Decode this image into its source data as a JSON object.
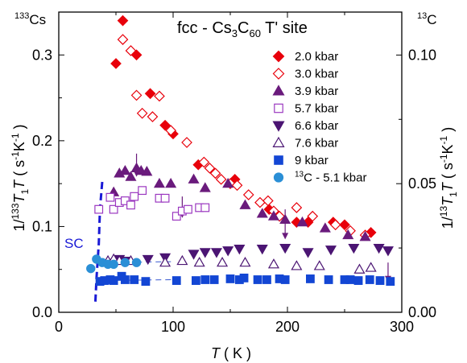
{
  "chart_data": {
    "type": "scatter",
    "title": "fcc - Cs3C60 T' site",
    "xlabel": "T ( K )",
    "ylabel_left": "1/133T1T ( s-1K-1 )",
    "ylabel_right": "1/13T1T ( s-1K-1 )",
    "corner_left": "133Cs",
    "corner_right": "13C",
    "xlim": [
      0,
      300
    ],
    "ylim_left": [
      0,
      0.35
    ],
    "ylim_right": [
      0,
      0.1167
    ],
    "x_ticks": [
      0,
      100,
      200,
      300
    ],
    "y_ticks_left": [
      0.0,
      0.1,
      0.2,
      0.3
    ],
    "y_ticks_left_labels": [
      "0.0",
      "0.1",
      "0.2",
      "0.3"
    ],
    "y_ticks_right": [
      0.0,
      0.05,
      0.1
    ],
    "y_ticks_right_labels": [
      "0.00",
      "0.05",
      "0.10"
    ],
    "annotation_sc": "SC",
    "legend_position": "top-right",
    "series": [
      {
        "name": "2.0 kbar",
        "marker": "diamond",
        "filled": true,
        "color": "#e8000b",
        "points": [
          [
            50,
            0.29
          ],
          [
            56,
            0.34
          ],
          [
            68,
            0.3
          ],
          [
            80,
            0.255
          ],
          [
            93,
            0.218
          ],
          [
            100,
            0.208
          ],
          [
            122,
            0.172
          ],
          [
            154,
            0.155
          ],
          [
            184,
            0.12
          ],
          [
            208,
            0.105
          ],
          [
            218,
            0.105
          ],
          [
            240,
            0.105
          ],
          [
            250,
            0.102
          ],
          [
            273,
            0.093
          ]
        ]
      },
      {
        "name": "3.0 kbar",
        "marker": "diamond",
        "filled": false,
        "color": "#e8000b",
        "points": [
          [
            56,
            0.318
          ],
          [
            63,
            0.305
          ],
          [
            68,
            0.253
          ],
          [
            73,
            0.232
          ],
          [
            82,
            0.228
          ],
          [
            88,
            0.252
          ],
          [
            98,
            0.212
          ],
          [
            112,
            0.198
          ],
          [
            127,
            0.175
          ],
          [
            132,
            0.168
          ],
          [
            137,
            0.162
          ],
          [
            142,
            0.155
          ],
          [
            150,
            0.15
          ],
          [
            156,
            0.148
          ],
          [
            166,
            0.137
          ],
          [
            176,
            0.128
          ],
          [
            183,
            0.13
          ],
          [
            188,
            0.118
          ],
          [
            193,
            0.112
          ],
          [
            208,
            0.122
          ],
          [
            222,
            0.112
          ],
          [
            242,
            0.102
          ],
          [
            255,
            0.095
          ],
          [
            268,
            0.09
          ]
        ]
      },
      {
        "name": "3.9 kbar",
        "marker": "triangle",
        "filled": true,
        "color": "#6a1b7c",
        "points": [
          [
            48,
            0.14
          ],
          [
            53,
            0.162
          ],
          [
            58,
            0.165
          ],
          [
            63,
            0.158
          ],
          [
            68,
            0.168
          ],
          [
            72,
            0.165
          ],
          [
            77,
            0.164
          ],
          [
            88,
            0.15
          ],
          [
            98,
            0.15
          ],
          [
            118,
            0.155
          ],
          [
            128,
            0.145
          ],
          [
            148,
            0.15
          ],
          [
            163,
            0.125
          ],
          [
            178,
            0.115
          ],
          [
            188,
            0.112
          ],
          [
            198,
            0.108
          ],
          [
            213,
            0.105
          ],
          [
            233,
            0.098
          ],
          [
            253,
            0.09
          ],
          [
            268,
            0.088
          ]
        ]
      },
      {
        "name": "5.7 kbar",
        "marker": "square",
        "filled": false,
        "color": "#9b38c0",
        "points": [
          [
            35,
            0.12
          ],
          [
            45,
            0.134
          ],
          [
            48,
            0.12
          ],
          [
            53,
            0.128
          ],
          [
            58,
            0.13
          ],
          [
            63,
            0.125
          ],
          [
            66,
            0.135
          ],
          [
            73,
            0.142
          ],
          [
            88,
            0.133
          ],
          [
            93,
            0.133
          ],
          [
            103,
            0.112
          ],
          [
            108,
            0.118
          ],
          [
            113,
            0.12
          ],
          [
            123,
            0.122
          ],
          [
            128,
            0.122
          ]
        ]
      },
      {
        "name": "6.6 kbar",
        "marker": "triangle-down",
        "filled": true,
        "color": "#4b1573",
        "points": [
          [
            53,
            0.062
          ],
          [
            58,
            0.06
          ],
          [
            78,
            0.062
          ],
          [
            93,
            0.064
          ],
          [
            118,
            0.068
          ],
          [
            128,
            0.07
          ],
          [
            138,
            0.07
          ],
          [
            148,
            0.072
          ],
          [
            158,
            0.074
          ],
          [
            178,
            0.074
          ],
          [
            198,
            0.075
          ],
          [
            218,
            0.07
          ],
          [
            238,
            0.073
          ],
          [
            258,
            0.075
          ],
          [
            280,
            0.075
          ],
          [
            288,
            0.072
          ]
        ]
      },
      {
        "name": "7.6 kbar",
        "marker": "triangle",
        "filled": false,
        "color": "#4b1573",
        "points": [
          [
            43,
            0.06
          ],
          [
            48,
            0.062
          ],
          [
            53,
            0.06
          ],
          [
            63,
            0.06
          ],
          [
            93,
            0.058
          ],
          [
            108,
            0.06
          ],
          [
            123,
            0.058
          ],
          [
            143,
            0.058
          ],
          [
            163,
            0.058
          ],
          [
            188,
            0.056
          ],
          [
            208,
            0.054
          ],
          [
            228,
            0.054
          ],
          [
            263,
            0.05
          ],
          [
            273,
            0.052
          ]
        ]
      },
      {
        "name": "9 kbar",
        "marker": "square",
        "filled": true,
        "color": "#1346d4",
        "points": [
          [
            36,
            0.036
          ],
          [
            40,
            0.037
          ],
          [
            45,
            0.038
          ],
          [
            48,
            0.037
          ],
          [
            55,
            0.042
          ],
          [
            58,
            0.038
          ],
          [
            66,
            0.038
          ],
          [
            76,
            0.036
          ],
          [
            103,
            0.037
          ],
          [
            120,
            0.037
          ],
          [
            128,
            0.038
          ],
          [
            136,
            0.038
          ],
          [
            150,
            0.039
          ],
          [
            158,
            0.038
          ],
          [
            162,
            0.04
          ],
          [
            174,
            0.038
          ],
          [
            182,
            0.038
          ],
          [
            193,
            0.039
          ],
          [
            198,
            0.038
          ],
          [
            220,
            0.039
          ],
          [
            236,
            0.038
          ],
          [
            250,
            0.038
          ],
          [
            255,
            0.038
          ],
          [
            262,
            0.037
          ],
          [
            272,
            0.038
          ],
          [
            281,
            0.037
          ],
          [
            290,
            0.036
          ]
        ]
      },
      {
        "name": "13C - 5.1 kbar",
        "marker": "circle",
        "filled": true,
        "color": "#2b8fd6",
        "points": [
          [
            28,
            0.051
          ],
          [
            33,
            0.062
          ],
          [
            38,
            0.058
          ],
          [
            43,
            0.056
          ],
          [
            48,
            0.056
          ],
          [
            58,
            0.058
          ],
          [
            68,
            0.058
          ]
        ]
      }
    ],
    "arrows": [
      [
        68,
        0.185,
        0.158
      ],
      [
        108,
        0.135,
        0.11
      ],
      [
        198,
        0.12,
        0.085
      ],
      [
        288,
        0.058,
        0.035
      ]
    ],
    "sc_boundary": [
      [
        38,
        0.152
      ],
      [
        36,
        0.12
      ],
      [
        35,
        0.08
      ],
      [
        33,
        0.04
      ],
      [
        32,
        0.012
      ]
    ],
    "dashed_guides": [
      [
        [
          34,
          0.058
        ],
        [
          100,
          0.059
        ]
      ],
      [
        [
          34,
          0.037
        ],
        [
          100,
          0.038
        ]
      ]
    ]
  }
}
